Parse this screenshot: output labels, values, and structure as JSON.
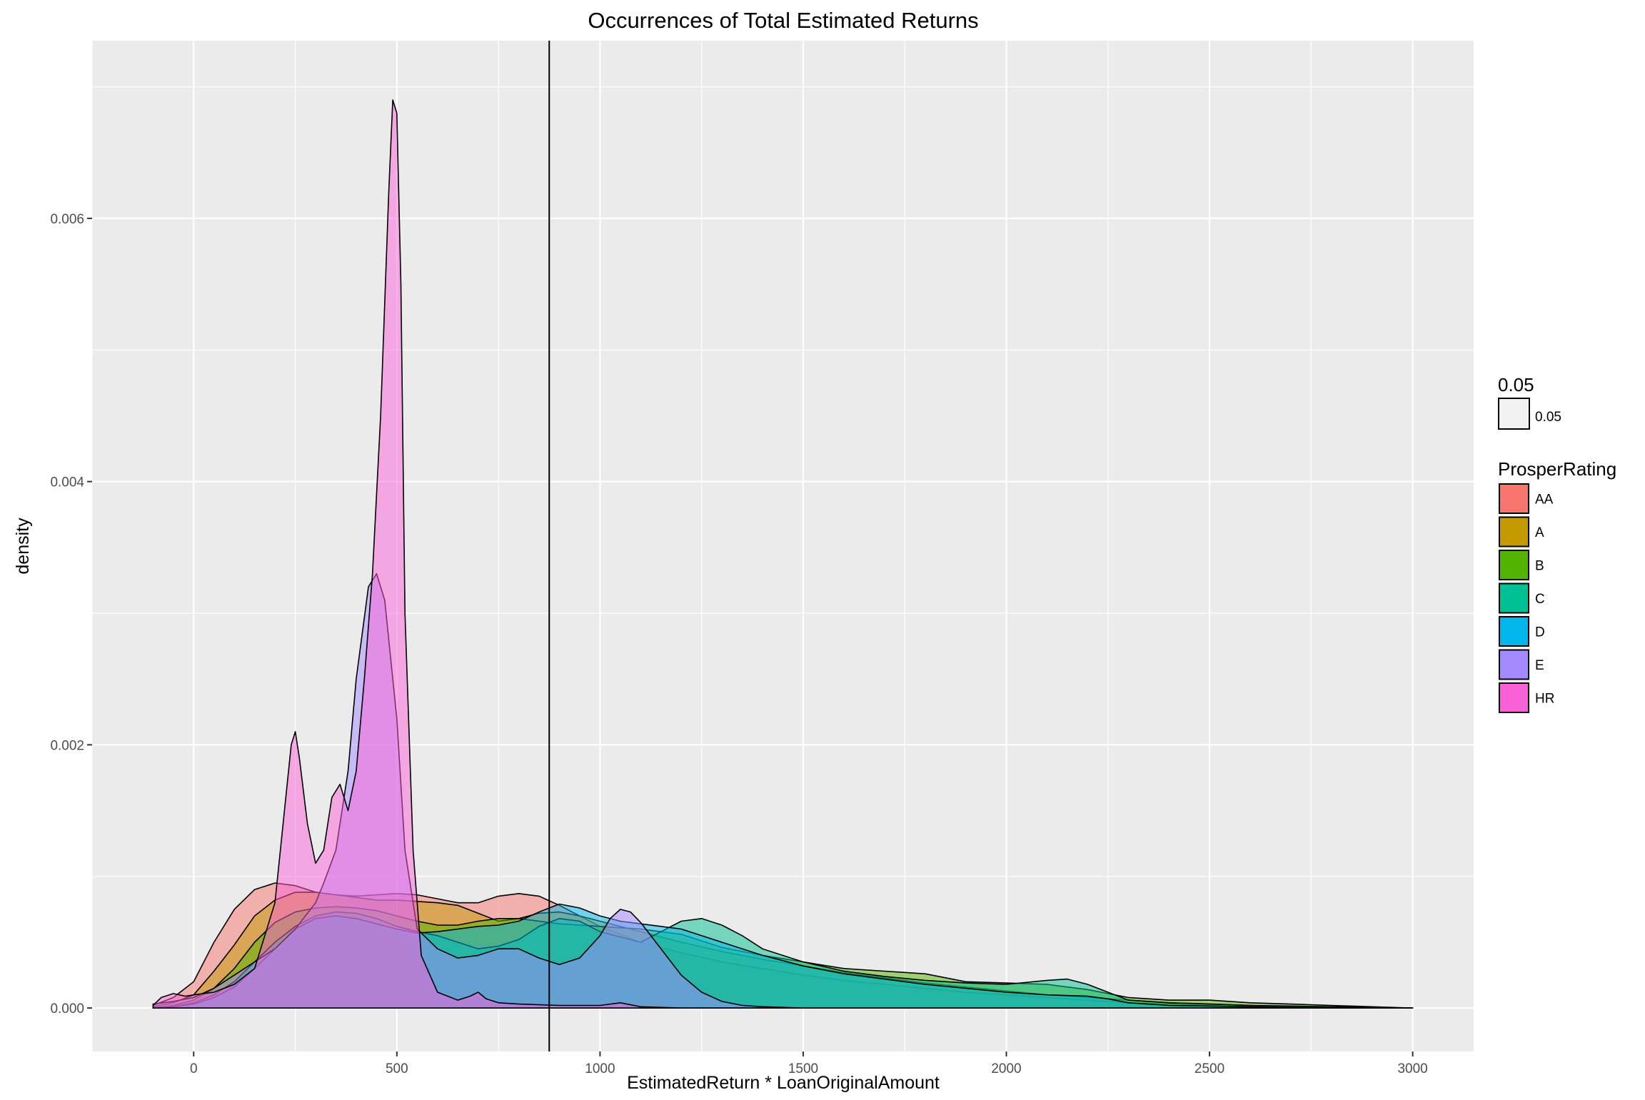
{
  "chart_data": {
    "type": "area",
    "title": "Occurrences of Total Estimated Returns",
    "xlabel": "EstimatedReturn * LoanOriginalAmount",
    "ylabel": "density",
    "xlim": [
      -250,
      3150
    ],
    "ylim": [
      -0.00033,
      0.00735
    ],
    "x_ticks": [
      0,
      500,
      1000,
      1500,
      2000,
      2500,
      3000
    ],
    "y_ticks": [
      0.0,
      0.002,
      0.004,
      0.006
    ],
    "y_tick_labels": [
      "0.000",
      "0.002",
      "0.004",
      "0.006"
    ],
    "grid": true,
    "background": "#ebebeb",
    "vline_x": 875,
    "fill_alpha": 0.5,
    "legend_position": "right",
    "legend_alpha": {
      "title": "0.05",
      "label": "0.05"
    },
    "legend": {
      "title": "ProsperRating",
      "entries": [
        {
          "name": "AA",
          "color": "#F8766D"
        },
        {
          "name": "A",
          "color": "#C49A00"
        },
        {
          "name": "B",
          "color": "#53B400"
        },
        {
          "name": "C",
          "color": "#00C094"
        },
        {
          "name": "D",
          "color": "#00B6EB"
        },
        {
          "name": "E",
          "color": "#A58AFF"
        },
        {
          "name": "HR",
          "color": "#FB61D7"
        }
      ]
    },
    "series": [
      {
        "name": "AA",
        "color": "#F8766D",
        "x": [
          -100,
          -50,
          0,
          50,
          100,
          150,
          200,
          250,
          300,
          350,
          400,
          450,
          500,
          550,
          600,
          650,
          700,
          750,
          800,
          850,
          900,
          950,
          1000,
          1100,
          1200,
          1300,
          1400,
          1500,
          1600,
          1700,
          1800,
          1900,
          2000,
          2100,
          2200,
          2300,
          2400,
          2500,
          2600,
          2700,
          2800,
          3000
        ],
        "y": [
          2e-05,
          8e-05,
          0.0002,
          0.0005,
          0.00075,
          0.0009,
          0.00095,
          0.00093,
          0.00088,
          0.00086,
          0.00085,
          0.00086,
          0.00087,
          0.00086,
          0.00083,
          0.0008,
          0.0008,
          0.00085,
          0.00087,
          0.00085,
          0.00078,
          0.0007,
          0.00062,
          0.0005,
          0.00042,
          0.00035,
          0.0003,
          0.00025,
          0.00021,
          0.00018,
          0.00015,
          0.00012,
          0.0001,
          8e-05,
          6e-05,
          4e-05,
          3e-05,
          2e-05,
          1e-05,
          1e-05,
          0.0,
          0.0
        ]
      },
      {
        "name": "A",
        "color": "#C49A00",
        "x": [
          -100,
          -50,
          0,
          50,
          100,
          150,
          200,
          250,
          300,
          350,
          400,
          450,
          500,
          550,
          600,
          650,
          700,
          750,
          800,
          850,
          900,
          950,
          1000,
          1100,
          1200,
          1300,
          1400,
          1500,
          1600,
          1700,
          1800,
          1900,
          2000,
          2100,
          2200,
          2300,
          2400,
          2500,
          2600,
          2700,
          2800,
          3000
        ],
        "y": [
          1e-05,
          4e-05,
          0.0001,
          0.00028,
          0.00048,
          0.0007,
          0.00082,
          0.00088,
          0.00088,
          0.00086,
          0.00084,
          0.00082,
          0.00082,
          0.00081,
          0.0008,
          0.00078,
          0.00072,
          0.00066,
          0.00068,
          0.00072,
          0.00073,
          0.0007,
          0.00066,
          0.00058,
          0.0005,
          0.00043,
          0.00037,
          0.00032,
          0.00027,
          0.00023,
          0.00019,
          0.00016,
          0.00013,
          0.0001,
          8e-05,
          6e-05,
          4e-05,
          3e-05,
          2e-05,
          1e-05,
          1e-05,
          0.0
        ]
      },
      {
        "name": "B",
        "color": "#53B400",
        "x": [
          -100,
          -50,
          0,
          50,
          100,
          150,
          200,
          250,
          300,
          350,
          400,
          450,
          500,
          550,
          600,
          650,
          700,
          750,
          800,
          850,
          900,
          950,
          1000,
          1100,
          1200,
          1300,
          1400,
          1500,
          1600,
          1700,
          1800,
          1900,
          2000,
          2100,
          2200,
          2300,
          2400,
          2500,
          2600,
          2700,
          2800,
          3000
        ],
        "y": [
          0.0,
          2e-05,
          6e-05,
          0.00015,
          0.0003,
          0.0005,
          0.00065,
          0.00073,
          0.00076,
          0.00077,
          0.00076,
          0.00074,
          0.0007,
          0.00066,
          0.00063,
          0.00063,
          0.00066,
          0.00068,
          0.00068,
          0.00066,
          0.00064,
          0.00063,
          0.00062,
          0.0006,
          0.00056,
          0.00046,
          0.0004,
          0.00035,
          0.0003,
          0.00028,
          0.00026,
          0.0002,
          0.00019,
          0.00018,
          0.00014,
          8e-05,
          6e-05,
          6e-05,
          4e-05,
          3e-05,
          2e-05,
          0.0
        ]
      },
      {
        "name": "C",
        "color": "#00C094",
        "x": [
          -100,
          -50,
          0,
          50,
          100,
          150,
          200,
          250,
          300,
          350,
          400,
          450,
          500,
          550,
          600,
          650,
          700,
          750,
          800,
          850,
          900,
          950,
          1000,
          1050,
          1100,
          1150,
          1200,
          1250,
          1300,
          1350,
          1400,
          1500,
          1600,
          1700,
          1800,
          1900,
          2000,
          2100,
          2150,
          2200,
          2250,
          2300,
          2400,
          2500,
          2600,
          2800,
          3000
        ],
        "y": [
          0.0,
          1e-05,
          4e-05,
          0.0001,
          0.0002,
          0.00035,
          0.0005,
          0.00062,
          0.0007,
          0.00073,
          0.00072,
          0.00068,
          0.00062,
          0.00058,
          0.00055,
          0.0005,
          0.00045,
          0.00047,
          0.00052,
          0.00062,
          0.00068,
          0.00066,
          0.00058,
          0.00054,
          0.0005,
          0.00058,
          0.00066,
          0.00068,
          0.00063,
          0.00055,
          0.00045,
          0.00035,
          0.00028,
          0.00024,
          0.00021,
          0.00019,
          0.00018,
          0.00021,
          0.00022,
          0.00018,
          0.00012,
          6e-05,
          4e-05,
          3e-05,
          2e-05,
          1e-05,
          0.0
        ]
      },
      {
        "name": "D",
        "color": "#00B6EB",
        "x": [
          -100,
          -50,
          0,
          50,
          100,
          150,
          200,
          250,
          300,
          350,
          400,
          450,
          500,
          550,
          600,
          650,
          700,
          750,
          800,
          850,
          900,
          950,
          1000,
          1050,
          1100,
          1150,
          1200,
          1250,
          1300,
          1350,
          1400,
          1500,
          1600,
          1700,
          1800,
          1900,
          2000,
          2100,
          2200,
          2250,
          2300,
          2400,
          2600,
          2800,
          3000
        ],
        "y": [
          0.0,
          1e-05,
          3e-05,
          8e-05,
          0.00016,
          0.0003,
          0.00045,
          0.0006,
          0.00068,
          0.0007,
          0.00068,
          0.00064,
          0.0006,
          0.00057,
          0.00058,
          0.0006,
          0.00062,
          0.00063,
          0.00066,
          0.00073,
          0.00079,
          0.00076,
          0.0007,
          0.00066,
          0.00064,
          0.00062,
          0.0006,
          0.00055,
          0.0005,
          0.00045,
          0.0004,
          0.00032,
          0.00026,
          0.00022,
          0.00018,
          0.00015,
          0.00012,
          0.0001,
          9e-05,
          7e-05,
          4e-05,
          2e-05,
          1e-05,
          0.0,
          0.0
        ]
      },
      {
        "name": "E",
        "color": "#A58AFF",
        "x": [
          -100,
          -50,
          0,
          50,
          100,
          150,
          200,
          250,
          300,
          320,
          350,
          380,
          400,
          430,
          450,
          470,
          500,
          520,
          550,
          600,
          650,
          700,
          750,
          800,
          850,
          900,
          950,
          1000,
          1025,
          1050,
          1075,
          1100,
          1150,
          1200,
          1250,
          1300,
          1350,
          1400,
          1500,
          1600,
          1800,
          2000,
          2200,
          2400,
          2600,
          3000
        ],
        "y": [
          3e-05,
          5e-05,
          8e-05,
          0.00015,
          0.00025,
          0.00035,
          0.00045,
          0.0006,
          0.0008,
          0.00095,
          0.0012,
          0.0018,
          0.0025,
          0.0032,
          0.0033,
          0.0031,
          0.0022,
          0.0012,
          0.0006,
          0.00045,
          0.00038,
          0.0004,
          0.00045,
          0.00045,
          0.00038,
          0.00033,
          0.00038,
          0.00055,
          0.00068,
          0.00075,
          0.00073,
          0.00065,
          0.00045,
          0.00025,
          0.00012,
          5e-05,
          2e-05,
          1e-05,
          0.0,
          0.0,
          0.0,
          0.0,
          0.0,
          0.0,
          0.0,
          0.0
        ]
      },
      {
        "name": "HR",
        "color": "#FB61D7",
        "x": [
          -100,
          -80,
          -50,
          -20,
          0,
          50,
          100,
          150,
          200,
          220,
          240,
          250,
          260,
          280,
          300,
          320,
          340,
          360,
          380,
          400,
          420,
          440,
          460,
          480,
          490,
          500,
          510,
          520,
          540,
          560,
          600,
          650,
          680,
          700,
          720,
          750,
          800,
          900,
          1000,
          1050,
          1100,
          1200,
          1300,
          1500,
          2000,
          3000
        ],
        "y": [
          2e-05,
          8e-05,
          0.00011,
          9e-05,
          0.0001,
          0.00012,
          0.00018,
          0.0003,
          0.0008,
          0.0014,
          0.002,
          0.0021,
          0.0019,
          0.0014,
          0.0011,
          0.0012,
          0.0016,
          0.0017,
          0.0015,
          0.0018,
          0.0025,
          0.0033,
          0.0045,
          0.0062,
          0.0069,
          0.0068,
          0.0055,
          0.003,
          0.0012,
          0.0004,
          0.00012,
          6e-05,
          9e-05,
          0.00012,
          7e-05,
          4e-05,
          3e-05,
          2e-05,
          2e-05,
          4e-05,
          1e-05,
          0.0,
          0.0,
          0.0,
          0.0,
          0.0
        ]
      }
    ]
  }
}
